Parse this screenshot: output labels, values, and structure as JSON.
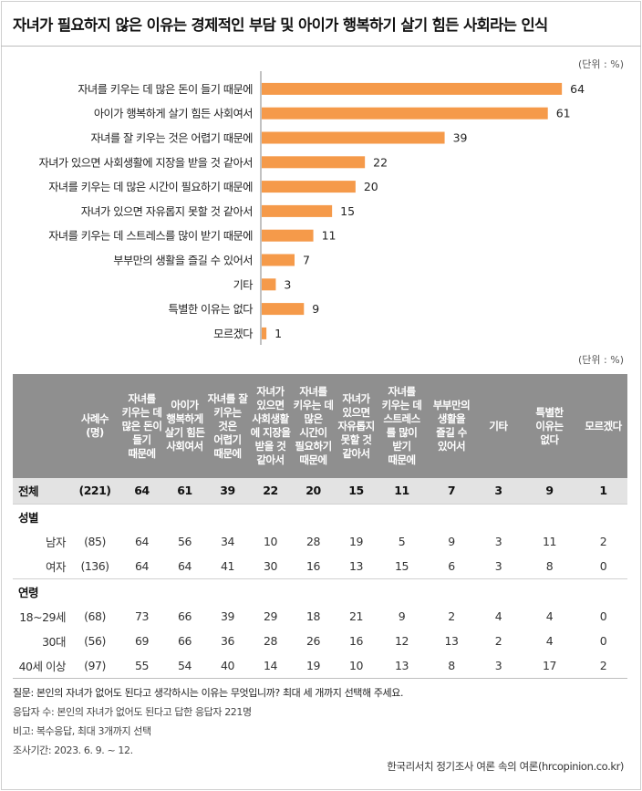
{
  "title": "자녀가 필요하지 않은 이유는 경제적인 부담 및 아이가 행복하기 살기 힘든 사회라는 인식",
  "unit_label": "(단위 : %)",
  "chart_data": {
    "type": "bar",
    "orientation": "horizontal",
    "title": "자녀가 필요하지 않은 이유는 경제적인 부담 및 아이가 행복하기 살기 힘든 사회라는 인식",
    "categories": [
      "자녀를 키우는 데 많은 돈이 들기 때문에",
      "아이가 행복하게 살기 힘든 사회여서",
      "자녀를 잘 키우는 것은 어렵기 때문에",
      "자녀가 있으면 사회생활에 지장을 받을 것 같아서",
      "자녀를 키우는 데 많은 시간이 필요하기 때문에",
      "자녀가 있으면 자유롭지 못할 것 같아서",
      "자녀를 키우는 데 스트레스를 많이 받기 때문에",
      "부부만의 생활을 즐길 수 있어서",
      "기타",
      "특별한 이유는 없다",
      "모르겠다"
    ],
    "values": [
      64,
      61,
      39,
      22,
      20,
      15,
      11,
      7,
      3,
      9,
      1
    ],
    "xlim": [
      0,
      70
    ],
    "bar_color": "#f59a4a",
    "grid": false
  },
  "table": {
    "unit_label": "(단위 : %)",
    "headers": [
      "",
      "사례수\n(명)",
      "자녀를\n키우는 데\n많은 돈이\n들기\n때문에",
      "아이가\n행복하게\n살기 힘든\n사회여서",
      "자녀를 잘\n키우는\n것은\n어렵기\n때문에",
      "자녀가\n있으면\n사회생활\n에 지장을\n받을 것\n같아서",
      "자녀를\n키우는 데\n많은\n시간이\n필요하기\n때문에",
      "자녀가\n있으면\n자유롭지\n못할 것\n같아서",
      "자녀를\n키우는 데\n스트레스\n를 많이\n받기\n때문에",
      "부부만의\n생활을\n즐길 수\n있어서",
      "기타",
      "특별한\n이유는\n없다",
      "모르겠다"
    ],
    "total": {
      "label": "전체",
      "n": "(221)",
      "values": [
        "64",
        "61",
        "39",
        "22",
        "20",
        "15",
        "11",
        "7",
        "3",
        "9",
        "1"
      ]
    },
    "groups": [
      {
        "label": "성별",
        "rows": [
          {
            "label": "남자",
            "n": "(85)",
            "values": [
              "64",
              "56",
              "34",
              "10",
              "28",
              "19",
              "5",
              "9",
              "3",
              "11",
              "2"
            ]
          },
          {
            "label": "여자",
            "n": "(136)",
            "values": [
              "64",
              "64",
              "41",
              "30",
              "16",
              "13",
              "15",
              "6",
              "3",
              "8",
              "0"
            ]
          }
        ]
      },
      {
        "label": "연령",
        "rows": [
          {
            "label": "18~29세",
            "n": "(68)",
            "values": [
              "73",
              "66",
              "39",
              "29",
              "18",
              "21",
              "9",
              "2",
              "4",
              "4",
              "0"
            ]
          },
          {
            "label": "30대",
            "n": "(56)",
            "values": [
              "69",
              "66",
              "36",
              "28",
              "26",
              "16",
              "12",
              "13",
              "2",
              "4",
              "0"
            ]
          },
          {
            "label": "40세 이상",
            "n": "(97)",
            "values": [
              "55",
              "54",
              "40",
              "14",
              "19",
              "10",
              "13",
              "8",
              "3",
              "17",
              "2"
            ]
          }
        ]
      }
    ]
  },
  "notes": {
    "question": "질문: 본인의 자녀가 없어도 된다고 생각하시는 이유는 무엇입니까? 최대 세 개까지 선택해 주세요.",
    "respondents": "응답자 수: 본인의 자녀가 없어도 된다고 답한 응답자 221명",
    "remark": "비고: 복수응답, 최대 3개까지 선택",
    "period": "조사기간: 2023. 6. 9. ~ 12."
  },
  "source": "한국리서치 정기조사 여론 속의 여론(hrcopinion.co.kr)"
}
